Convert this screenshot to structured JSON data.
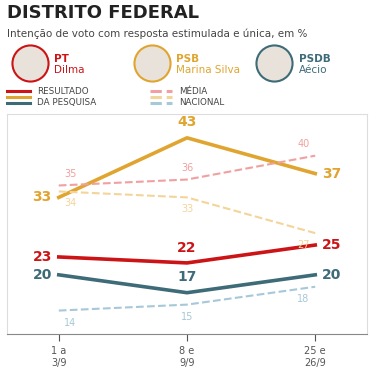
{
  "chart_data": {
    "type": "line",
    "title": "DISTRITO FEDERAL",
    "subtitle": "Intenção de voto com resposta estimulada e única, em %",
    "categories": [
      "1 a\n3/9",
      "8 e\n9/9",
      "25 e\n26/9"
    ],
    "ylim": [
      10,
      47
    ],
    "grid": false,
    "data_labels": true,
    "tick_labels": "x",
    "key": [
      {
        "label": "RESULTADO\nDA PESQUISA",
        "line_style": "solid"
      },
      {
        "label": "MÉDIA\nNACIONAL",
        "line_style": "dashed"
      }
    ],
    "series": [
      {
        "name": "Dilma",
        "party": "PT",
        "color": "#cc1417",
        "line_style": "solid",
        "values": [
          23,
          22,
          25
        ]
      },
      {
        "name": "Marina Silva",
        "party": "PSB",
        "color": "#e0a530",
        "line_style": "solid",
        "values": [
          33,
          43,
          37
        ]
      },
      {
        "name": "Aécio",
        "party": "PSDB",
        "color": "#3d6b78",
        "line_style": "solid",
        "values": [
          20,
          17,
          20
        ]
      },
      {
        "name": "Dilma",
        "party": "PT",
        "color": "#f0a0a0",
        "line_style": "dashed",
        "values": [
          35,
          36,
          40
        ]
      },
      {
        "name": "Marina Silva",
        "party": "PSB",
        "color": "#f3d49a",
        "line_style": "dashed",
        "values": [
          34,
          33,
          27
        ]
      },
      {
        "name": "Aécio",
        "party": "PSDB",
        "color": "#a6c8d8",
        "line_style": "dashed",
        "values": [
          14,
          15,
          18
        ]
      }
    ]
  }
}
